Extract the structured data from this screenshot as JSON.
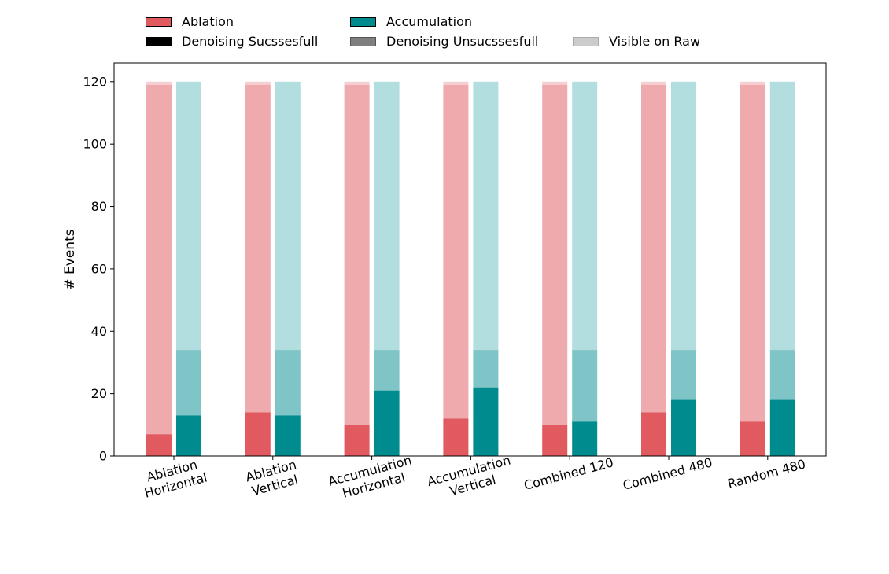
{
  "chart_data": {
    "type": "bar",
    "stacked": true,
    "grouped": true,
    "xlabel": "",
    "ylabel": "# Events",
    "ylim": [
      0,
      126
    ],
    "yticks": [
      0,
      20,
      40,
      60,
      80,
      100,
      120
    ],
    "grid": false,
    "legend_position": "top",
    "categories": [
      [
        "Ablation",
        "Horizontal"
      ],
      [
        "Ablation",
        "Vertical"
      ],
      [
        "Accumulation",
        "Horizontal"
      ],
      [
        "Accumulation",
        "Vertical"
      ],
      [
        "Combined 120"
      ],
      [
        "Combined 480"
      ],
      [
        "Random 480"
      ]
    ],
    "legend": [
      {
        "label": "Ablation",
        "color": "#e05a60",
        "edge": "#000000"
      },
      {
        "label": "Accumulation",
        "color": "#008b8f",
        "edge": "#000000"
      },
      {
        "label": "Denoising Sucssesfull",
        "color": "#000000",
        "edge": "#000000"
      },
      {
        "label": "Denoising Unsucssesfull",
        "color": "#7f7f7f",
        "edge": "#555555"
      },
      {
        "label": "Visible on Raw",
        "color": "#cccccc",
        "edge": "#aaaaaa"
      }
    ],
    "series": [
      {
        "name": "Ablation",
        "colors": {
          "successful": "#e05a60",
          "unsuccessful": "#efaaae",
          "visible": "#f5cfd1"
        },
        "successful": [
          7,
          14,
          10,
          12,
          10,
          14,
          11
        ],
        "unsuccessful_top": [
          119,
          119,
          119,
          119,
          119,
          119,
          119
        ],
        "visible_on_raw": [
          120,
          120,
          120,
          120,
          120,
          120,
          120
        ]
      },
      {
        "name": "Accumulation",
        "colors": {
          "successful": "#008b8f",
          "unsuccessful": "#7fc4c7",
          "visible": "#b3dee0"
        },
        "successful": [
          13,
          13,
          21,
          22,
          11,
          18,
          18
        ],
        "unsuccessful_top": [
          34,
          34,
          34,
          34,
          34,
          34,
          34
        ],
        "visible_on_raw": [
          120,
          120,
          120,
          120,
          120,
          120,
          120
        ]
      }
    ]
  }
}
